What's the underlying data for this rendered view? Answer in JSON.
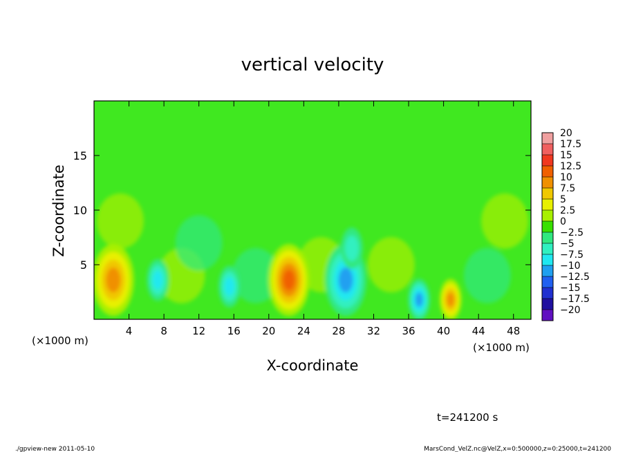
{
  "chart_data": {
    "type": "heatmap",
    "title": "vertical velocity",
    "xlabel": "X-coordinate",
    "ylabel": "Z-coordinate",
    "x_unit_label_left": "(×1000 m)",
    "x_unit_label_right": "(×1000 m)",
    "xlim": [
      0,
      50
    ],
    "ylim": [
      0,
      20
    ],
    "x_ticks": [
      4,
      8,
      12,
      16,
      20,
      24,
      28,
      32,
      36,
      40,
      44,
      48
    ],
    "y_ticks": [
      5,
      10,
      15
    ],
    "colorbar": {
      "levels": [
        20,
        17.5,
        15,
        12.5,
        10,
        7.5,
        5,
        2.5,
        0,
        -2.5,
        -5,
        -7.5,
        -10,
        -12.5,
        -15,
        -17.5,
        -20
      ],
      "labels": [
        "20",
        "17.5",
        "15",
        "12.5",
        "10",
        "7.5",
        "5",
        "2.5",
        "0",
        "−2.5",
        "−5",
        "−7.5",
        "−10",
        "−12.5",
        "−15",
        "−17.5",
        "−20"
      ],
      "colors": [
        "#f0a0a0",
        "#f06060",
        "#f03820",
        "#f06000",
        "#f09000",
        "#f0c800",
        "#e8f000",
        "#a8f000",
        "#38e000",
        "#30e880",
        "#30f0c0",
        "#20e8f0",
        "#20a0f0",
        "#2060f0",
        "#2030d0",
        "#2010a0",
        "#6010c0"
      ]
    },
    "features": [
      {
        "x": 2.2,
        "z": 3.6,
        "w_peak": 11
      },
      {
        "x": 7.3,
        "z": 3.6,
        "w_peak": -8
      },
      {
        "x": 15.5,
        "z": 3.0,
        "w_peak": -8
      },
      {
        "x": 22.3,
        "z": 3.6,
        "w_peak": 13
      },
      {
        "x": 28.8,
        "z": 3.6,
        "w_peak": -11
      },
      {
        "x": 29.5,
        "z": 6.5,
        "w_peak": -6
      },
      {
        "x": 37.2,
        "z": 1.8,
        "w_peak": -9
      },
      {
        "x": 40.8,
        "z": 1.8,
        "w_peak": 9
      }
    ],
    "time_label": "t=241200 s"
  },
  "footer": {
    "left": "./gpview-new   2011-05-10",
    "right": "MarsCond_VelZ.nc@VelZ,x=0:500000,z=0:25000,t=241200"
  }
}
